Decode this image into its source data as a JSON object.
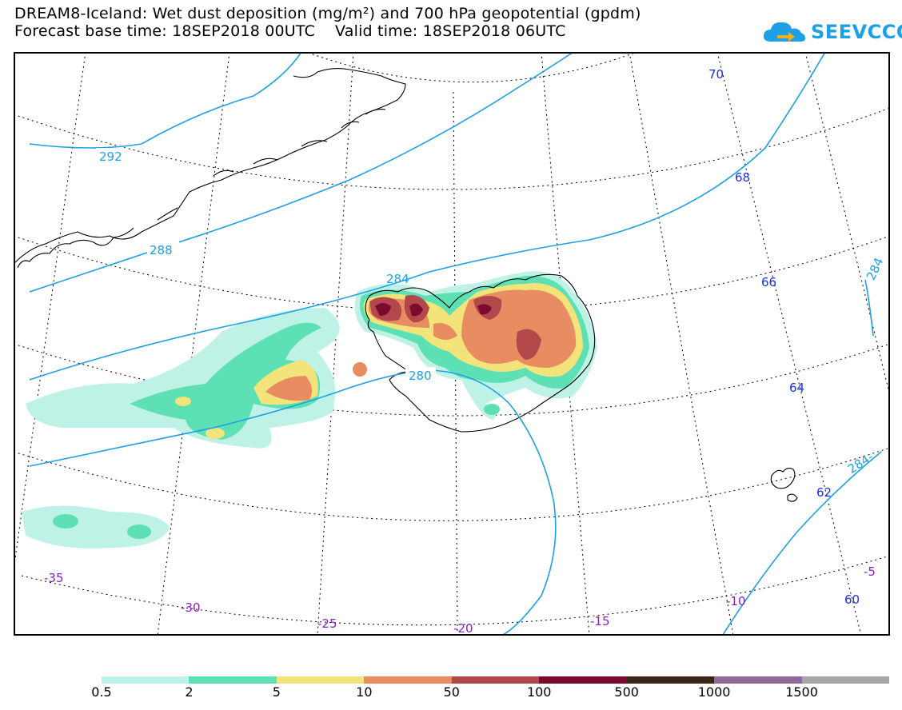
{
  "header": {
    "title": "DREAM8-Iceland: Wet dust deposition (mg/m²) and 700 hPa geopotential (gpdm)",
    "subtitle": "Forecast base time: 18SEP2018 00UTC    Valid time: 18SEP2018 06UTC"
  },
  "logo": {
    "text": "SEEVCCC",
    "icon": "cloud-arrow-icon",
    "color": "#1ea0e6"
  },
  "map": {
    "contour_color": "#1ea0e6",
    "contour_labels": [
      "292",
      "288",
      "284",
      "280",
      "284",
      "284-"
    ],
    "latitude_labels": [
      "70",
      "68",
      "66",
      "64",
      "62",
      "60"
    ],
    "longitude_labels": [
      "-35",
      "-30",
      "-25",
      "-20",
      "-15",
      "-10",
      "-5"
    ],
    "latitude_label_color": "#1a2fe0",
    "longitude_label_color": "#8a1fc8"
  },
  "colorbar": {
    "levels": [
      "0.5",
      "2",
      "5",
      "10",
      "50",
      "100",
      "500",
      "1000",
      "1500"
    ],
    "colors": [
      "#bff2e6",
      "#5ee0b5",
      "#f2e47a",
      "#e88c62",
      "#b2484a",
      "#7a0a2e",
      "#3a2416",
      "#8e6a9a",
      "#a6a6a6"
    ]
  }
}
